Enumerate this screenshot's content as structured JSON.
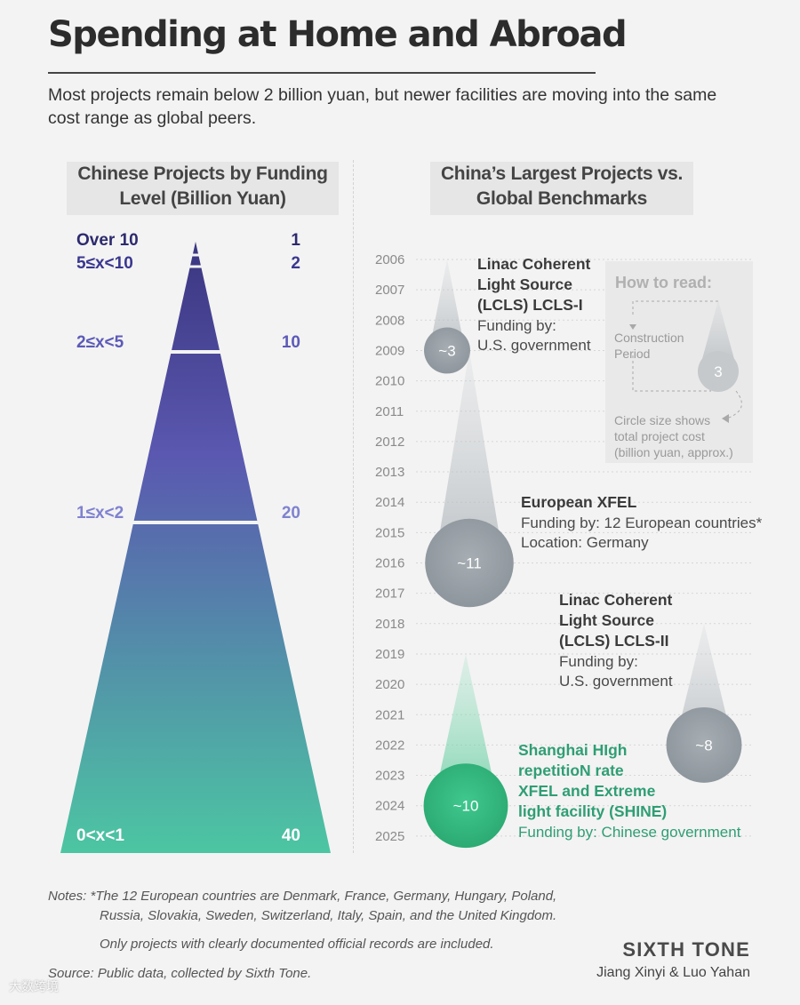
{
  "header": {
    "title": "Spending at Home and Abroad",
    "subtitle": "Most projects remain below 2 billion yuan, but newer facilities are moving into the same cost range as global peers."
  },
  "left_panel": {
    "heading": "Chinese Projects by Funding Level (Billion Yuan)"
  },
  "right_panel": {
    "heading": "China’s Largest Projects vs. Global Benchmarks",
    "how_to_read": {
      "title": "How to read:",
      "construction_label": "Construction Period",
      "circle_value": "3",
      "circle_label": "Circle size shows total project cost (billion yuan, approx.)"
    }
  },
  "colors": {
    "pyramid_top": "#3b3680",
    "pyramid_mid": "#5a58b0",
    "pyramid_bottom": "#4cc6a2",
    "global_project": "#b9bfc4",
    "china_project": "#3dba86",
    "china_text": "#2f9e74"
  },
  "chart_data": [
    {
      "type": "bar",
      "title": "Chinese Projects by Funding Level (Billion Yuan)",
      "categories": [
        "Over 10",
        "5≤x<10",
        "2≤x<5",
        "1≤x<2",
        "0<x<1"
      ],
      "values": [
        1,
        2,
        10,
        20,
        40
      ]
    },
    {
      "type": "scatter",
      "title": "China’s Largest Projects vs. Global Benchmarks",
      "years": [
        "2006",
        "2007",
        "2008",
        "2009",
        "2010",
        "2011",
        "2012",
        "2013",
        "2014",
        "2015",
        "2016",
        "2017",
        "2018",
        "2019",
        "2020",
        "2021",
        "2022",
        "2023",
        "2024",
        "2025"
      ],
      "projects": [
        {
          "name_lines": [
            "Linac Coherent",
            "Light Source",
            "(LCLS) LCLS-I"
          ],
          "details": [
            "Funding by:",
            "U.S. government"
          ],
          "start": 2006,
          "end": 2009,
          "cost_label": "~3",
          "cost": 3,
          "china": false
        },
        {
          "name_lines": [
            "European XFEL"
          ],
          "details": [
            "Funding by: 12 European countries*",
            "Location: Germany"
          ],
          "start": 2009,
          "end": 2016,
          "cost_label": "~11",
          "cost": 11,
          "china": false
        },
        {
          "name_lines": [
            "Linac Coherent",
            "Light Source",
            "(LCLS) LCLS-II"
          ],
          "details": [
            "Funding by:",
            "U.S. government"
          ],
          "start": 2018,
          "end": 2022,
          "cost_label": "~8",
          "cost": 8,
          "china": false
        },
        {
          "name_lines": [
            "Shanghai HIgh",
            "repetitioN rate",
            "XFEL and Extreme",
            "light facility (SHINE)"
          ],
          "details": [
            "Funding by: Chinese government"
          ],
          "start": 2019,
          "end": 2024,
          "cost_label": "~10",
          "cost": 10,
          "china": true
        }
      ]
    }
  ],
  "notes": {
    "line1": "Notes: *The 12 European countries are Denmark, France, Germany, Hungary, Poland,",
    "line2": "Russia, Slovakia, Sweden, Switzerland, Italy, Spain, and the United Kingdom.",
    "line3": "Only projects with clearly documented official records are included.",
    "source": "Source: Public data, collected by Sixth Tone."
  },
  "footer": {
    "brand": "SIXTH TONE",
    "authors": "Jiang Xinyi & Luo Yahan",
    "watermark": "大数跨境"
  }
}
